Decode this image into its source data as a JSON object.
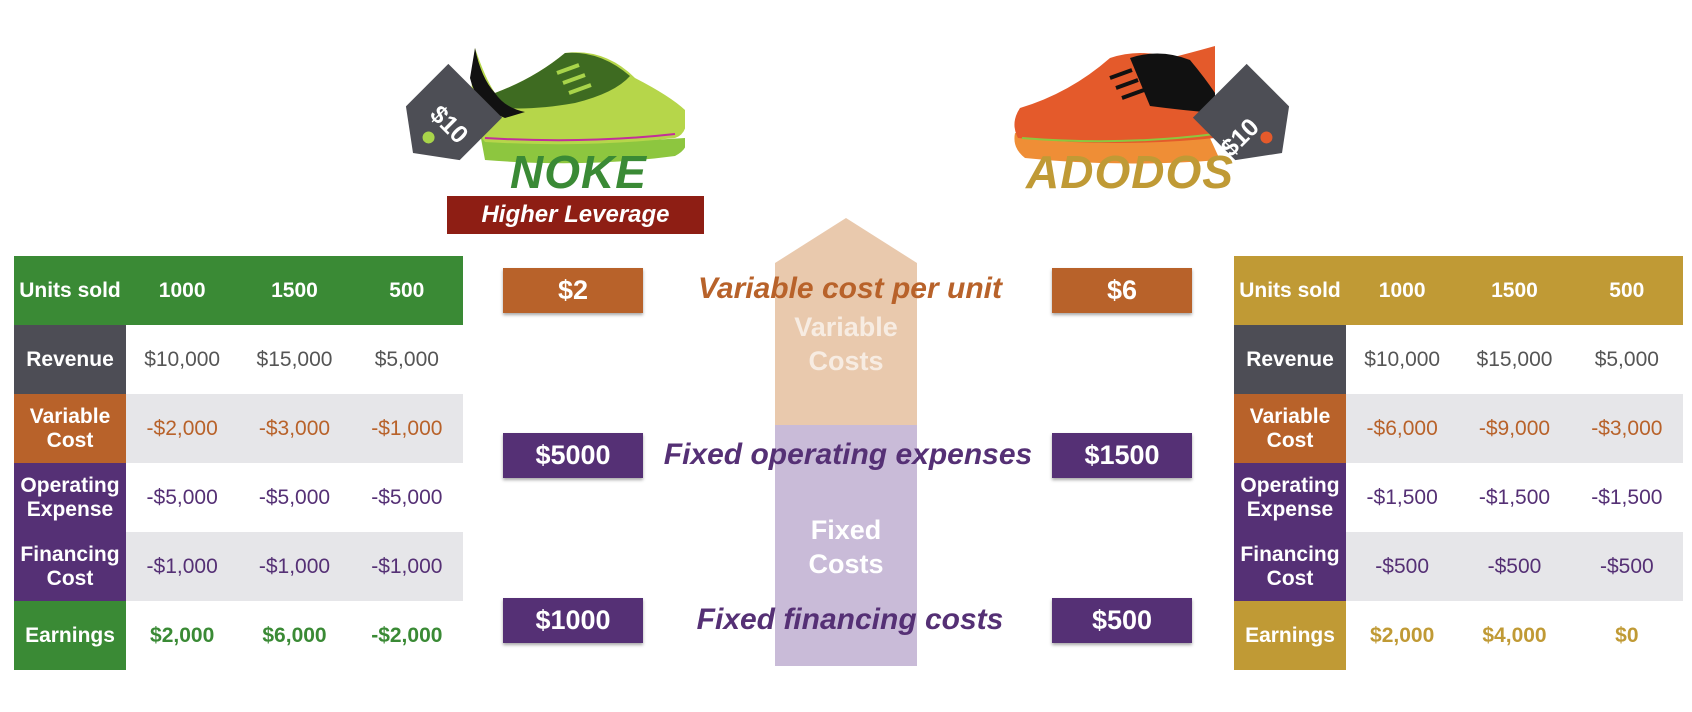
{
  "colors": {
    "noke_green": "#3a8a35",
    "adodos_gold": "#c09a35",
    "revenue_gray": "#4d4d55",
    "variable_orange": "#b8622a",
    "fixed_purple": "#553075",
    "leverage_red": "#8e1e14",
    "row_alt": "#e6e6e9"
  },
  "noke": {
    "brand": "NOKE",
    "price_tag": "$10",
    "badge": "Higher Leverage",
    "header": {
      "label": "Units sold",
      "units": [
        "1000",
        "1500",
        "500"
      ]
    },
    "rows": [
      {
        "label": "Revenue",
        "values": [
          "$10,000",
          "$15,000",
          "$5,000"
        ]
      },
      {
        "label": "Variable Cost",
        "values": [
          "-$2,000",
          "-$3,000",
          "-$1,000"
        ]
      },
      {
        "label": "Operating Expense",
        "values": [
          "-$5,000",
          "-$5,000",
          "-$5,000"
        ]
      },
      {
        "label": "Financing Cost",
        "values": [
          "-$1,000",
          "-$1,000",
          "-$1,000"
        ]
      },
      {
        "label": "Earnings",
        "values": [
          "$2,000",
          "$6,000",
          "-$2,000"
        ]
      }
    ]
  },
  "adodos": {
    "brand": "ADODOS",
    "price_tag": "$10",
    "header": {
      "label": "Units sold",
      "units": [
        "1000",
        "1500",
        "500"
      ]
    },
    "rows": [
      {
        "label": "Revenue",
        "values": [
          "$10,000",
          "$15,000",
          "$5,000"
        ]
      },
      {
        "label": "Variable Cost",
        "values": [
          "-$6,000",
          "-$9,000",
          "-$3,000"
        ]
      },
      {
        "label": "Operating Expense",
        "values": [
          "-$1,500",
          "-$1,500",
          "-$1,500"
        ]
      },
      {
        "label": "Financing Cost",
        "values": [
          "-$500",
          "-$500",
          "-$500"
        ]
      },
      {
        "label": "Earnings",
        "values": [
          "$2,000",
          "$4,000",
          "$0"
        ]
      }
    ]
  },
  "middle": {
    "variable": {
      "label": "Variable cost per unit",
      "noke": "$2",
      "adodos": "$6"
    },
    "operating": {
      "label": "Fixed operating expenses",
      "noke": "$5000",
      "adodos": "$1500"
    },
    "financing": {
      "label": "Fixed financing costs",
      "noke": "$1000",
      "adodos": "$500"
    },
    "column": {
      "variable_text": "Variable Costs",
      "fixed_text": "Fixed Costs"
    }
  }
}
